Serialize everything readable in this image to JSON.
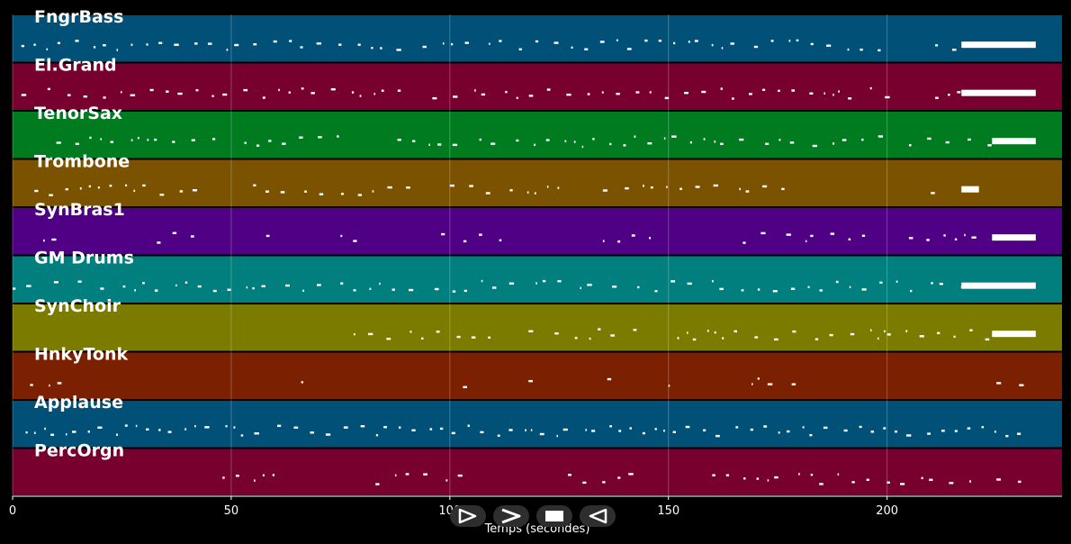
{
  "tracks": [
    {
      "name": "FngrBass",
      "color": "#005078"
    },
    {
      "name": "El.Grand",
      "color": "#78002e"
    },
    {
      "name": "TenorSax",
      "color": "#007b20"
    },
    {
      "name": "Trombone",
      "color": "#7b5200"
    },
    {
      "name": "SynBras1",
      "color": "#4f0084"
    },
    {
      "name": "GM Drums",
      "color": "#007f7e"
    },
    {
      "name": "SynChoir",
      "color": "#7b7b00"
    },
    {
      "name": "HnkyTonk",
      "color": "#7b2000"
    },
    {
      "name": "Applause",
      "color": "#005078"
    },
    {
      "name": "PercOrgn",
      "color": "#78002e"
    }
  ],
  "axis": {
    "label": "Temps (secondes)",
    "xlim": [
      0,
      240
    ],
    "ticks": [
      0,
      50,
      100,
      150,
      200
    ]
  },
  "transport": [
    {
      "name": "play-icon"
    },
    {
      "name": "fast-forward-icon"
    },
    {
      "name": "stop-icon"
    },
    {
      "name": "rewind-icon"
    }
  ]
}
